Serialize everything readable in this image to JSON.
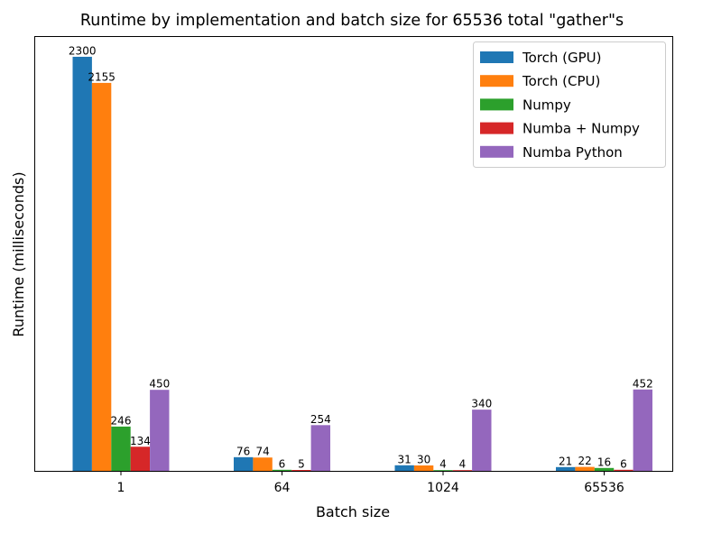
{
  "chart_data": {
    "type": "bar",
    "title": "Runtime by implementation and batch size for 65536 total \"gather\"s",
    "xlabel": "Batch size",
    "ylabel": "Runtime (milliseconds)",
    "categories": [
      "1",
      "64",
      "1024",
      "65536"
    ],
    "ylim": [
      0,
      2415
    ],
    "y_ticks_shown": false,
    "grid": false,
    "legend_position": "top-right",
    "series": [
      {
        "name": "Torch (GPU)",
        "color": "#1f77b4",
        "values": [
          2300,
          76,
          31,
          21
        ]
      },
      {
        "name": "Torch (CPU)",
        "color": "#ff7f0e",
        "values": [
          2155,
          74,
          30,
          22
        ]
      },
      {
        "name": "Numpy",
        "color": "#2ca02c",
        "values": [
          246,
          6,
          4,
          16
        ]
      },
      {
        "name": "Numba + Numpy",
        "color": "#d62728",
        "values": [
          134,
          5,
          4,
          6
        ]
      },
      {
        "name": "Numba Python",
        "color": "#9467bd",
        "values": [
          450,
          254,
          340,
          452
        ]
      }
    ]
  }
}
